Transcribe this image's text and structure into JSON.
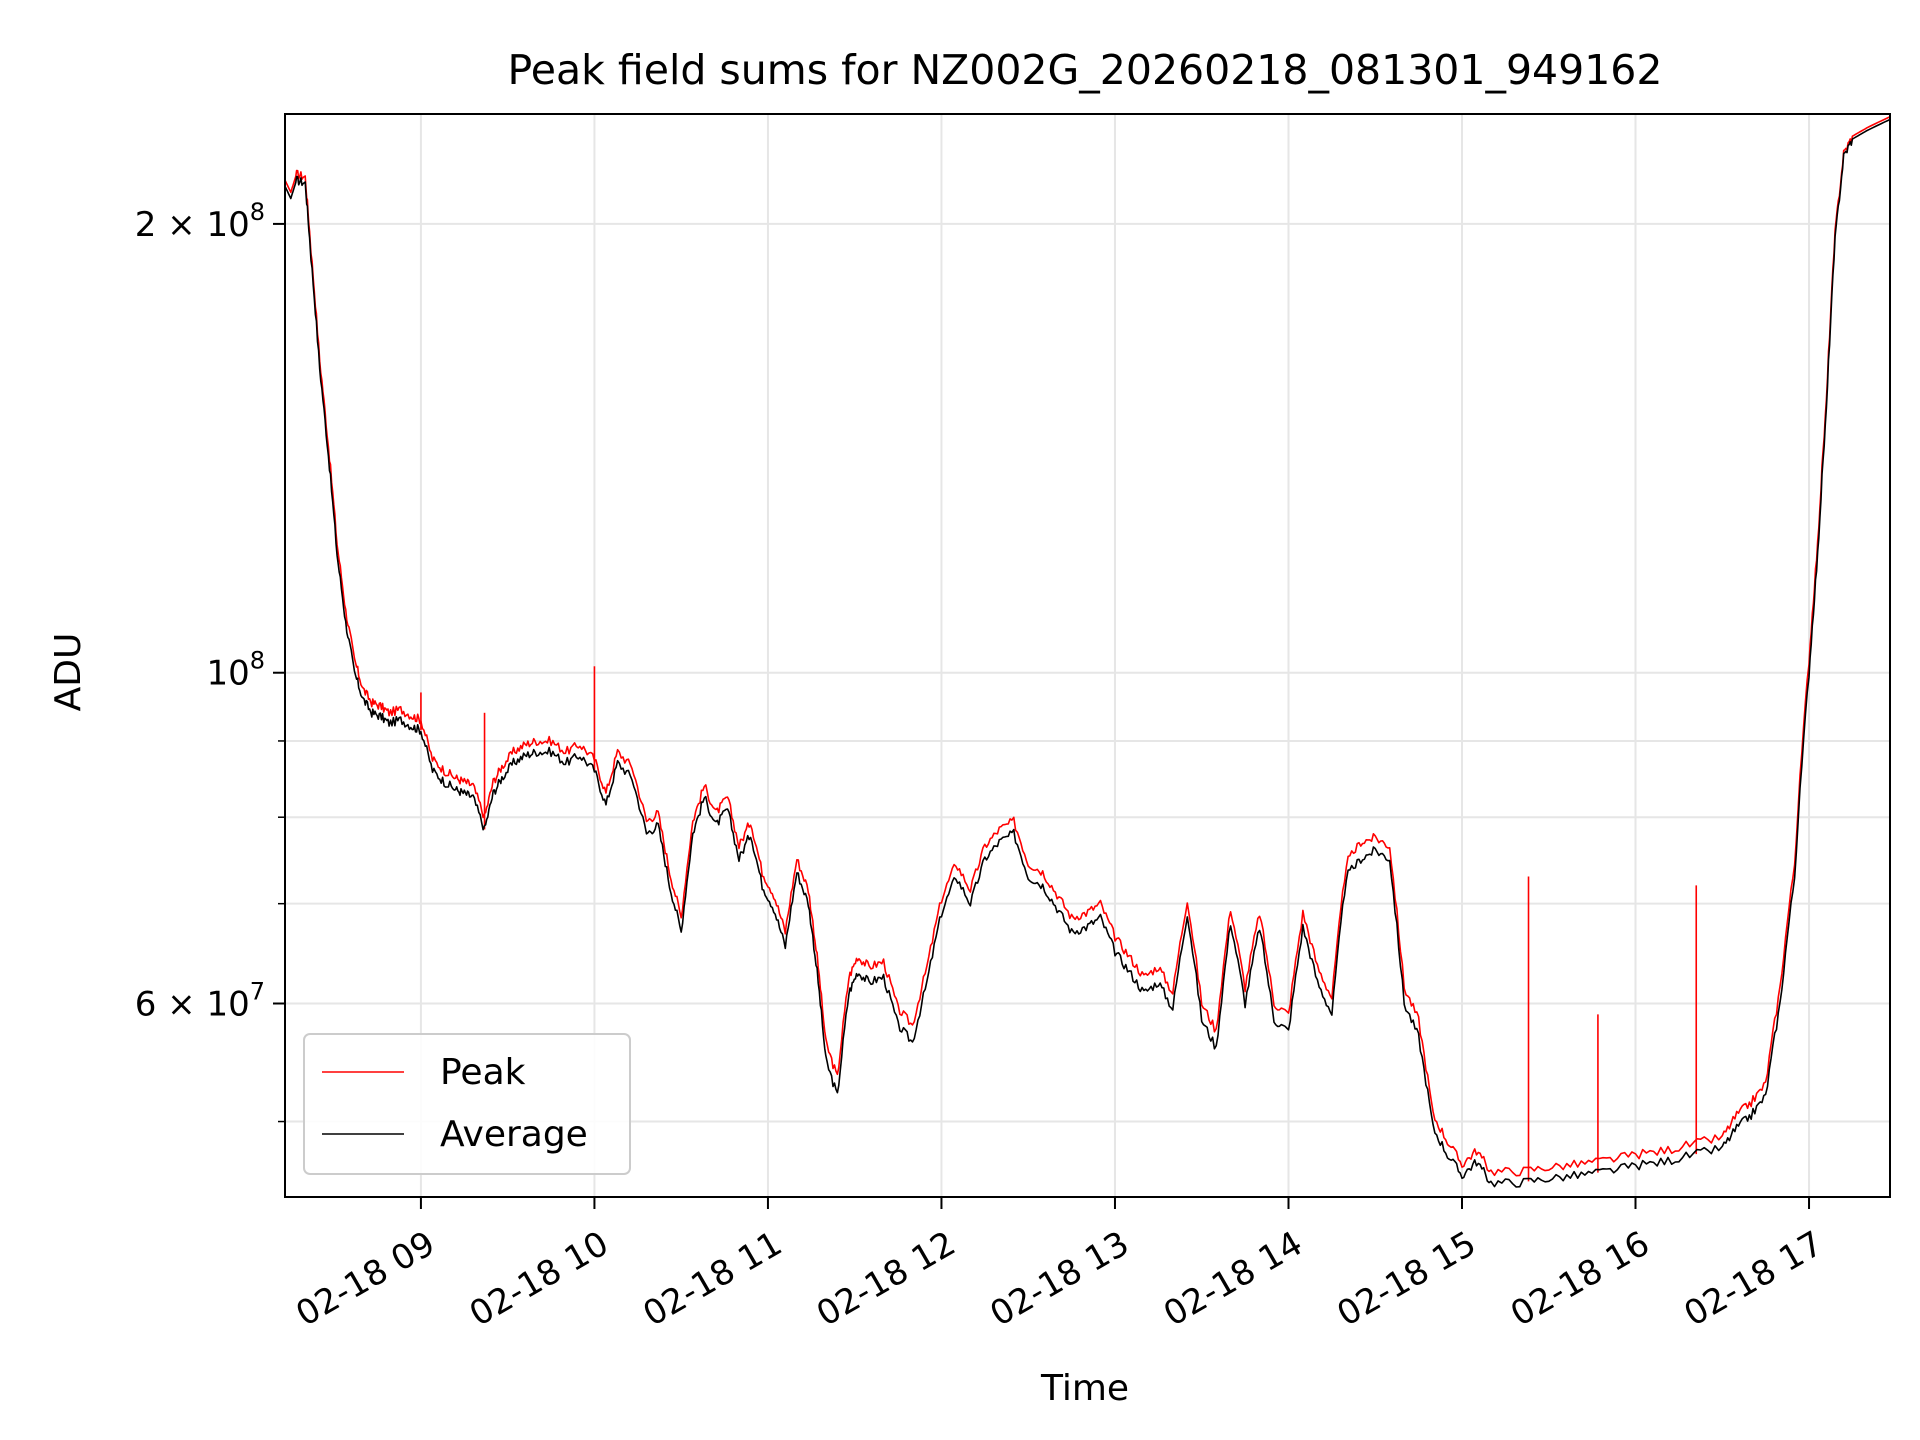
{
  "chart_data": {
    "type": "line",
    "title": "Peak field sums for NZ002G_20260218_081301_949162",
    "xlabel": "Time",
    "ylabel": "ADU",
    "y_scale": "log",
    "ylim": [
      44500000,
      237000000
    ],
    "xlim": [
      "2026-02-18 08:13",
      "2026-02-18 17:28"
    ],
    "grid": true,
    "legend_position": "lower-left",
    "x_ticks": [
      "02-18 09",
      "02-18 10",
      "02-18 11",
      "02-18 12",
      "02-18 13",
      "02-18 14",
      "02-18 15",
      "02-18 16",
      "02-18 17"
    ],
    "y_ticks": [
      {
        "value": 200000000,
        "mant": "2",
        "op": " × ",
        "base": "10",
        "exp": "8"
      },
      {
        "value": 100000000,
        "mant": "",
        "op": "",
        "base": "10",
        "exp": "8"
      },
      {
        "value": 60000000,
        "mant": "6",
        "op": " × ",
        "base": "10",
        "exp": "7"
      }
    ],
    "y_minor_ticks": [
      50000000,
      70000000,
      80000000,
      90000000
    ],
    "series": [
      {
        "name": "Peak",
        "color": "#ff0000"
      },
      {
        "name": "Average",
        "color": "#000000"
      }
    ],
    "x": [
      "08:13",
      "08:15",
      "08:17",
      "08:20",
      "08:22",
      "08:25",
      "08:28",
      "08:31",
      "08:34",
      "08:37",
      "08:40",
      "08:43",
      "08:46",
      "08:49",
      "08:53",
      "08:57",
      "09:00",
      "09:04",
      "09:08",
      "09:12",
      "09:15",
      "09:18",
      "09:22",
      "09:25",
      "09:28",
      "09:32",
      "09:36",
      "09:40",
      "09:45",
      "09:50",
      "09:55",
      "10:00",
      "10:04",
      "10:08",
      "10:13",
      "10:18",
      "10:22",
      "10:26",
      "10:30",
      "10:34",
      "10:38",
      "10:42",
      "10:46",
      "10:50",
      "10:54",
      "10:58",
      "11:02",
      "11:06",
      "11:10",
      "11:14",
      "11:17",
      "11:20",
      "11:24",
      "11:28",
      "11:31",
      "11:35",
      "11:40",
      "11:45",
      "11:50",
      "11:55",
      "12:00",
      "12:05",
      "12:10",
      "12:15",
      "12:20",
      "12:25",
      "12:30",
      "12:35",
      "12:40",
      "12:45",
      "12:50",
      "12:55",
      "13:00",
      "13:05",
      "13:10",
      "13:15",
      "13:20",
      "13:25",
      "13:30",
      "13:35",
      "13:40",
      "13:45",
      "13:50",
      "13:55",
      "14:00",
      "14:05",
      "14:10",
      "14:15",
      "14:20",
      "14:25",
      "14:30",
      "14:35",
      "14:40",
      "14:45",
      "14:50",
      "14:55",
      "15:00",
      "15:05",
      "15:10",
      "15:20",
      "15:30",
      "15:40",
      "15:50",
      "16:00",
      "16:10",
      "16:20",
      "16:30",
      "16:35",
      "16:40",
      "16:45",
      "16:50",
      "16:55",
      "17:00",
      "17:03",
      "17:06",
      "17:09",
      "17:12",
      "17:15",
      "17:20",
      "17:28"
    ],
    "average": [
      212000000,
      208000000,
      214000000,
      213000000,
      190000000,
      160000000,
      140000000,
      120000000,
      108000000,
      100000000,
      96000000,
      94000000,
      93500000,
      92500000,
      93000000,
      92000000,
      91500000,
      86000000,
      84500000,
      83500000,
      83000000,
      82500000,
      78500000,
      83000000,
      85000000,
      87000000,
      88000000,
      88500000,
      88500000,
      87000000,
      88000000,
      86000000,
      81500000,
      87000000,
      85000000,
      78000000,
      79000000,
      72000000,
      67000000,
      78000000,
      82500000,
      79000000,
      81000000,
      75000000,
      78000000,
      72000000,
      69500000,
      65500000,
      73500000,
      70000000,
      63000000,
      55000000,
      52000000,
      61000000,
      63000000,
      62000000,
      62500000,
      58000000,
      56500000,
      62000000,
      69000000,
      73000000,
      70000000,
      75000000,
      77000000,
      78000000,
      73000000,
      72000000,
      69500000,
      67000000,
      67500000,
      68500000,
      65000000,
      63000000,
      61000000,
      62000000,
      59500000,
      69000000,
      58500000,
      56000000,
      68000000,
      60000000,
      67500000,
      58500000,
      57500000,
      67500000,
      62000000,
      59000000,
      73000000,
      75000000,
      76000000,
      75000000,
      60000000,
      57000000,
      49500000,
      47500000,
      46000000,
      47000000,
      45500000,
      45500000,
      45800000,
      46000000,
      46300000,
      46700000,
      47000000,
      47500000,
      48000000,
      49500000,
      50500000,
      52000000,
      60000000,
      73000000,
      100000000,
      120000000,
      150000000,
      195000000,
      222000000,
      228000000,
      231000000,
      235000000
    ],
    "peak": [
      214000000,
      210000000,
      216000000,
      215000000,
      192000000,
      162000000,
      142000000,
      122000000,
      110000000,
      102000000,
      97500000,
      95500000,
      95000000,
      94000000,
      94500000,
      93500000,
      93000000,
      87500000,
      86000000,
      85000000,
      84500000,
      84000000,
      80000000,
      84500000,
      86500000,
      88500000,
      89500000,
      90000000,
      90000000,
      88500000,
      89500000,
      87500000,
      83000000,
      88500000,
      86500000,
      79500000,
      80500000,
      73500000,
      68500000,
      79500000,
      84000000,
      80500000,
      82500000,
      76500000,
      79500000,
      73500000,
      71000000,
      67000000,
      75000000,
      71500000,
      64500000,
      56500000,
      53500000,
      62500000,
      64500000,
      63500000,
      64000000,
      59500000,
      58000000,
      63500000,
      70500000,
      74500000,
      71500000,
      76500000,
      78500000,
      79500000,
      74500000,
      73500000,
      71000000,
      68500000,
      69000000,
      70000000,
      66500000,
      64500000,
      62500000,
      63500000,
      61000000,
      70500000,
      60000000,
      57500000,
      69500000,
      61500000,
      69000000,
      60000000,
      59000000,
      69000000,
      63500000,
      60500000,
      74500000,
      77000000,
      77500000,
      76500000,
      61500000,
      58500000,
      50500000,
      48500000,
      46800000,
      47800000,
      46300000,
      46300000,
      46600000,
      46800000,
      47100000,
      47500000,
      47800000,
      48300000,
      48800000,
      50500000,
      51500000,
      53000000,
      61500000,
      74500000,
      102000000,
      122000000,
      152000000,
      197000000,
      223000000,
      229000000,
      232000000,
      236000000
    ],
    "peak_spikes": [
      {
        "x": "09:00",
        "y": 97000000
      },
      {
        "x": "09:22",
        "y": 94000000
      },
      {
        "x": "10:00",
        "y": 101000000
      },
      {
        "x": "15:23",
        "y": 73000000
      },
      {
        "x": "15:47",
        "y": 59000000
      },
      {
        "x": "16:21",
        "y": 72000000
      }
    ]
  }
}
